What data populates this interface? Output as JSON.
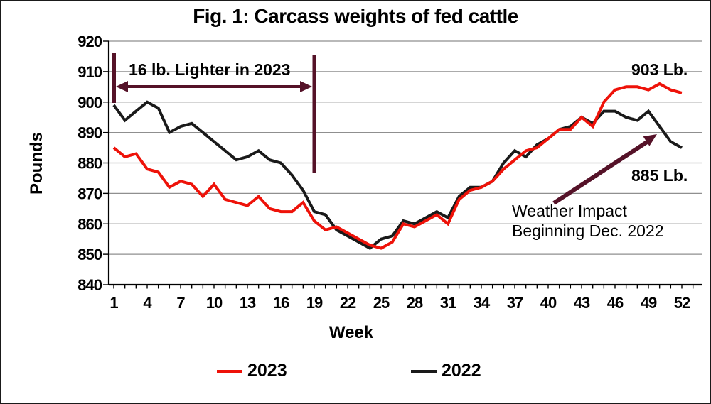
{
  "title": "Fig. 1: Carcass weights of fed cattle",
  "legend": [
    {
      "label": "2023",
      "color": "#ee1209"
    },
    {
      "label": "2022",
      "color": "#1a1a1a"
    }
  ],
  "colors": {
    "accent_maroon": "#551228",
    "gridline": "#8f8f8f",
    "series_2023": "#ee1209",
    "series_2022": "#1a1a1a"
  },
  "chart_data": {
    "type": "line",
    "title": "Fig. 1: Carcass weights of fed cattle",
    "xlabel": "Week",
    "ylabel": "Pounds",
    "xlim": [
      1,
      52
    ],
    "ylim": [
      840,
      920
    ],
    "xticks": [
      1,
      4,
      7,
      10,
      13,
      16,
      19,
      22,
      25,
      28,
      31,
      34,
      37,
      40,
      43,
      46,
      49,
      52
    ],
    "yticks": [
      840,
      850,
      860,
      870,
      880,
      890,
      900,
      910,
      920
    ],
    "grid": true,
    "legend_position": "bottom",
    "x": [
      1,
      2,
      3,
      4,
      5,
      6,
      7,
      8,
      9,
      10,
      11,
      12,
      13,
      14,
      15,
      16,
      17,
      18,
      19,
      20,
      21,
      22,
      23,
      24,
      25,
      26,
      27,
      28,
      29,
      30,
      31,
      32,
      33,
      34,
      35,
      36,
      37,
      38,
      39,
      40,
      41,
      42,
      43,
      44,
      45,
      46,
      47,
      48,
      49,
      50,
      51,
      52
    ],
    "series": [
      {
        "name": "2023",
        "color": "#ee1209",
        "values": [
          885,
          882,
          883,
          878,
          877,
          872,
          874,
          873,
          869,
          873,
          868,
          867,
          866,
          869,
          865,
          864,
          864,
          867,
          861,
          858,
          859,
          857,
          855,
          853,
          852,
          854,
          860,
          859,
          861,
          863,
          860,
          868,
          871,
          872,
          874,
          878,
          881,
          884,
          885,
          888,
          891,
          891,
          895,
          892,
          900,
          904,
          905,
          905,
          904,
          906,
          904,
          903
        ]
      },
      {
        "name": "2022",
        "color": "#1a1a1a",
        "values": [
          899,
          894,
          897,
          900,
          898,
          890,
          892,
          893,
          890,
          887,
          884,
          881,
          882,
          884,
          881,
          880,
          876,
          871,
          864,
          863,
          858,
          856,
          854,
          852,
          855,
          856,
          861,
          860,
          862,
          864,
          862,
          869,
          872,
          872,
          874,
          880,
          884,
          882,
          886,
          888,
          891,
          892,
          895,
          893,
          897,
          897,
          895,
          894,
          897,
          892,
          887,
          885
        ]
      }
    ],
    "annotations": {
      "lighter": "16 lb. Lighter in 2023",
      "end_2023": "903 Lb.",
      "end_2022": "885 Lb.",
      "weather_line1": "Weather Impact",
      "weather_line2": "Beginning Dec. 2022"
    }
  }
}
